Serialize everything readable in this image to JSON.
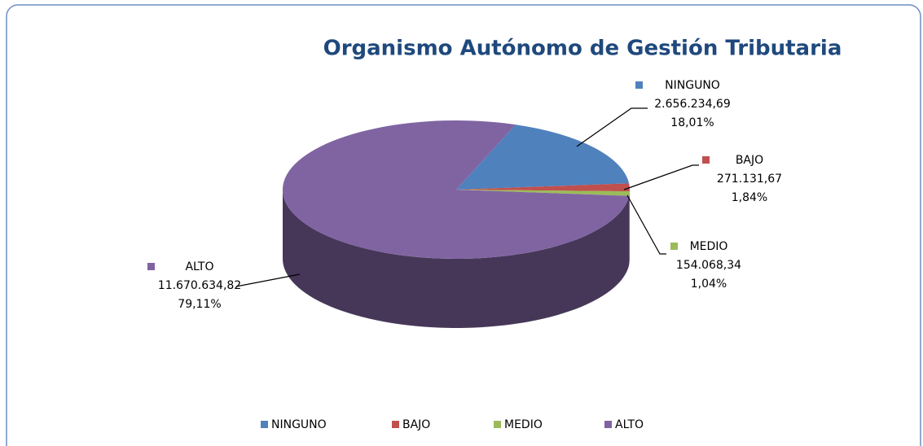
{
  "chart_data": {
    "type": "pie",
    "title": "Organismo Autónomo de Gestión Tributaria",
    "categories": [
      "NINGUNO",
      "BAJO",
      "MEDIO",
      "ALTO"
    ],
    "values": [
      2656234.69,
      271131.67,
      154068.34,
      11670634.82
    ],
    "value_labels": [
      "2.656.234,69",
      "271.131,67",
      "154.068,34",
      "11.670.634,82"
    ],
    "percentages": [
      18.01,
      1.84,
      1.04,
      79.11
    ],
    "percentage_labels": [
      "18,01%",
      "1,84%",
      "1,04%",
      "79,11%"
    ],
    "colors": [
      "#4f81bd",
      "#c0504d",
      "#9bbb59",
      "#8064a2"
    ],
    "legend": "bottom"
  }
}
